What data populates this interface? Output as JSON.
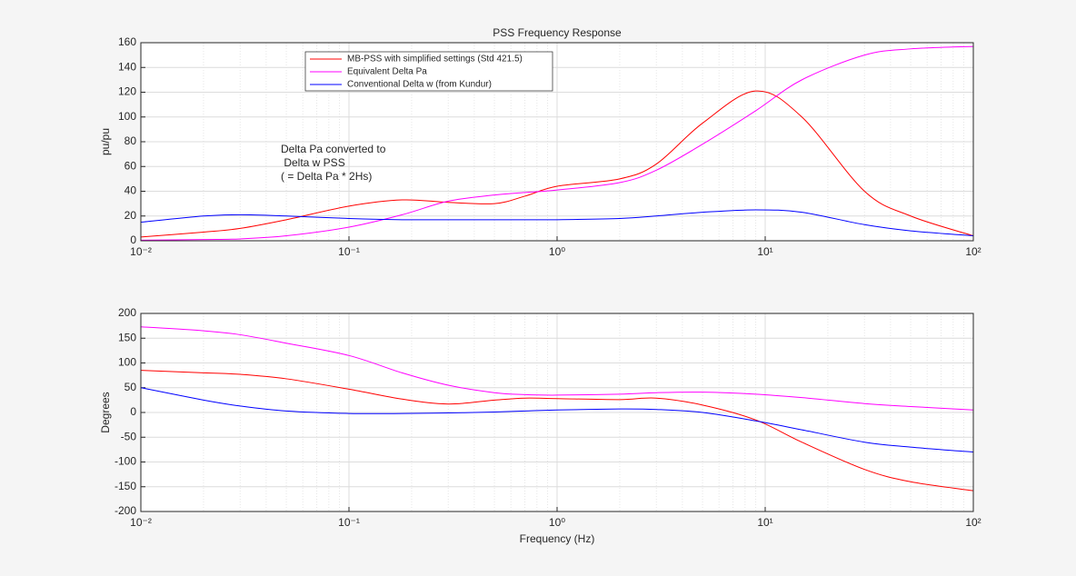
{
  "chart_data": [
    {
      "type": "line",
      "title": "PSS Frequency Response",
      "ylabel": "pu/pu",
      "x": [
        0.01,
        0.02,
        0.03,
        0.05,
        0.1,
        0.18,
        0.3,
        0.5,
        0.7,
        1,
        2,
        3,
        5,
        9,
        15,
        30,
        50,
        100
      ],
      "series": [
        {
          "name": "MB-PSS with simplified settings (Std 421.5)",
          "color": "#ff0000",
          "values": [
            3,
            7,
            10,
            17,
            28,
            33,
            31,
            30,
            36,
            44,
            50,
            62,
            95,
            121,
            100,
            40,
            20,
            4
          ]
        },
        {
          "name": "Equivalent Delta Pa",
          "color": "#ff00ff",
          "values": [
            0.5,
            1,
            1.5,
            4,
            11,
            21,
            32,
            37,
            39,
            41,
            47,
            57,
            78,
            105,
            130,
            150,
            155,
            157
          ]
        },
        {
          "name": "Conventional Delta w (from Kundur)",
          "color": "#0000ff",
          "values": [
            15,
            20,
            21,
            20,
            18,
            17,
            17,
            17,
            17,
            17,
            18,
            20,
            23,
            25,
            23,
            13,
            8,
            4
          ]
        }
      ],
      "annotation": [
        "Delta Pa converted to",
        " Delta w PSS",
        "( = Delta Pa * 2Hs)"
      ],
      "xscale": "log",
      "xlim": [
        0.01,
        100
      ],
      "xticks": [
        {
          "value": 0.01,
          "label": "10⁻²"
        },
        {
          "value": 0.1,
          "label": "10⁻¹"
        },
        {
          "value": 1,
          "label": "10⁰"
        },
        {
          "value": 10,
          "label": "10¹"
        },
        {
          "value": 100,
          "label": "10²"
        }
      ],
      "ylim": [
        0,
        160
      ],
      "yticks": [
        0,
        20,
        40,
        60,
        80,
        100,
        120,
        140,
        160
      ],
      "grid": true,
      "minor_grid": true,
      "legend": "upper left"
    },
    {
      "type": "line",
      "ylabel": "Degrees",
      "xlabel": "Frequency (Hz)",
      "x": [
        0.01,
        0.02,
        0.03,
        0.05,
        0.1,
        0.18,
        0.3,
        0.5,
        0.7,
        1,
        2,
        3,
        5,
        9,
        15,
        30,
        50,
        100
      ],
      "series": [
        {
          "color": "#ff0000",
          "values": [
            85,
            80,
            77,
            68,
            47,
            27,
            17,
            25,
            29,
            28,
            26,
            29,
            15,
            -15,
            -60,
            -115,
            -140,
            -158
          ]
        },
        {
          "color": "#ff00ff",
          "values": [
            173,
            165,
            157,
            140,
            115,
            80,
            55,
            40,
            36,
            35,
            37,
            40,
            41,
            37,
            30,
            18,
            12,
            5
          ]
        },
        {
          "color": "#0000ff",
          "values": [
            50,
            25,
            13,
            3,
            -2,
            -2,
            -1,
            1,
            3,
            5,
            7,
            6,
            0,
            -17,
            -35,
            -60,
            -70,
            -80
          ]
        }
      ],
      "xscale": "log",
      "xlim": [
        0.01,
        100
      ],
      "xticks": [
        {
          "value": 0.01,
          "label": "10⁻²"
        },
        {
          "value": 0.1,
          "label": "10⁻¹"
        },
        {
          "value": 1,
          "label": "10⁰"
        },
        {
          "value": 10,
          "label": "10¹"
        },
        {
          "value": 100,
          "label": "10²"
        }
      ],
      "ylim": [
        -200,
        200
      ],
      "yticks": [
        -200,
        -150,
        -100,
        -50,
        0,
        50,
        100,
        150,
        200
      ],
      "grid": true,
      "minor_grid": true
    }
  ]
}
